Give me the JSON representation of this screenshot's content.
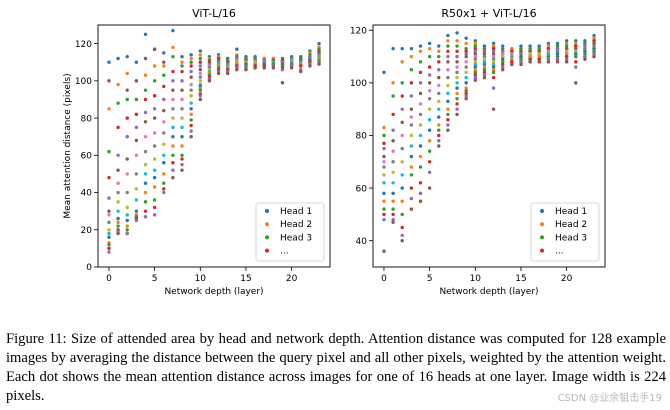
{
  "caption": "Figure 11: Size of attended area by head and network depth. Attention distance was computed for 128 example images by averaging the distance between the query pixel and all other pixels, weighted by the attention weight. Each dot shows the mean attention distance across images for one of 16 heads at one layer. Image width is 224 pixels.",
  "watermark": "CSDN @业余狙击手19",
  "colors": [
    "#1f77b4",
    "#ff7f0e",
    "#2ca02c",
    "#d62728",
    "#9467bd",
    "#8c564b",
    "#e377c2",
    "#7f7f7f",
    "#bcbd22",
    "#17becf"
  ],
  "chart_data": [
    {
      "type": "scatter",
      "title": "ViT-L/16",
      "xlabel": "Network depth (layer)",
      "ylabel": "Mean attention distance (pixels)",
      "xlim": [
        -1.2,
        24.2
      ],
      "ylim": [
        0,
        130
      ],
      "xticks": [
        0,
        5,
        10,
        15,
        20
      ],
      "yticks": [
        0,
        20,
        40,
        60,
        80,
        100,
        120
      ],
      "legend": {
        "position": "lower-right",
        "entries": [
          "Head 1",
          "Head 2",
          "Head 3",
          "..."
        ]
      },
      "layers": [
        [
          110,
          85,
          62,
          48,
          37,
          30,
          28,
          24,
          20,
          18,
          16,
          13,
          12,
          10,
          8,
          100
        ],
        [
          112,
          98,
          88,
          75,
          60,
          52,
          45,
          40,
          35,
          30,
          26,
          24,
          22,
          20,
          19,
          18
        ],
        [
          113,
          104,
          90,
          80,
          70,
          58,
          50,
          40,
          32,
          28,
          25,
          22,
          20,
          18,
          18,
          95
        ],
        [
          110,
          100,
          90,
          82,
          75,
          68,
          60,
          50,
          42,
          36,
          30,
          28,
          27,
          26,
          25,
          100
        ],
        [
          125,
          103,
          95,
          90,
          83,
          78,
          70,
          62,
          55,
          50,
          45,
          40,
          35,
          30,
          27,
          112
        ],
        [
          117,
          108,
          100,
          92,
          85,
          80,
          72,
          65,
          58,
          52,
          48,
          43,
          36,
          32,
          28,
          117
        ],
        [
          115,
          108,
          103,
          97,
          90,
          84,
          78,
          72,
          66,
          60,
          56,
          50,
          45,
          42,
          40,
          110
        ],
        [
          127,
          118,
          113,
          105,
          100,
          95,
          90,
          85,
          80,
          75,
          70,
          65,
          60,
          56,
          52,
          48
        ],
        [
          113,
          110,
          108,
          105,
          100,
          95,
          90,
          85,
          80,
          75,
          70,
          65,
          60,
          58,
          55,
          52
        ],
        [
          114,
          112,
          110,
          108,
          105,
          102,
          98,
          95,
          92,
          88,
          85,
          82,
          79,
          76,
          73,
          70
        ],
        [
          116,
          114,
          112,
          110,
          108,
          106,
          104,
          102,
          100,
          98,
          97,
          96,
          95,
          93,
          92,
          90
        ],
        [
          113,
          112,
          111,
          110,
          109,
          108,
          108,
          107,
          106,
          105,
          104,
          104,
          103,
          102,
          101,
          100
        ],
        [
          114,
          113,
          112,
          112,
          111,
          111,
          110,
          110,
          109,
          109,
          108,
          108,
          107,
          106,
          105,
          104
        ],
        [
          112,
          111,
          111,
          110,
          110,
          110,
          109,
          109,
          108,
          108,
          107,
          107,
          106,
          106,
          105,
          104
        ],
        [
          117,
          114,
          113,
          112,
          112,
          111,
          111,
          110,
          110,
          109,
          109,
          109,
          108,
          108,
          107,
          106
        ],
        [
          113,
          112,
          112,
          111,
          111,
          111,
          110,
          110,
          110,
          109,
          109,
          108,
          108,
          107,
          107,
          106
        ],
        [
          113,
          112,
          112,
          111,
          111,
          110,
          110,
          110,
          110,
          109,
          109,
          109,
          108,
          108,
          107,
          107
        ],
        [
          112,
          112,
          111,
          111,
          111,
          110,
          110,
          110,
          109,
          109,
          109,
          108,
          108,
          108,
          107,
          107
        ],
        [
          112,
          112,
          111,
          111,
          111,
          111,
          110,
          110,
          110,
          110,
          109,
          109,
          109,
          108,
          108,
          107
        ],
        [
          112,
          111,
          111,
          111,
          110,
          110,
          110,
          110,
          109,
          109,
          109,
          108,
          108,
          107,
          106,
          99
        ],
        [
          113,
          112,
          112,
          111,
          111,
          111,
          111,
          110,
          110,
          110,
          109,
          109,
          109,
          108,
          108,
          107
        ],
        [
          113,
          112,
          112,
          111,
          111,
          111,
          110,
          110,
          110,
          110,
          109,
          109,
          108,
          108,
          106,
          105
        ],
        [
          116,
          115,
          114,
          113,
          113,
          112,
          112,
          112,
          111,
          111,
          111,
          110,
          110,
          110,
          109,
          108
        ],
        [
          120,
          118,
          117,
          116,
          115,
          115,
          114,
          114,
          113,
          113,
          112,
          112,
          111,
          110,
          110,
          109
        ]
      ]
    },
    {
      "type": "scatter",
      "title": "R50x1 + ViT-L/16",
      "xlabel": "Network depth (layer)",
      "ylabel": "",
      "xlim": [
        -1.2,
        24.2
      ],
      "ylim": [
        30,
        122
      ],
      "xticks": [
        0,
        5,
        10,
        15,
        20
      ],
      "yticks": [
        40,
        60,
        80,
        100,
        120
      ],
      "legend": {
        "position": "lower-right",
        "entries": [
          "Head 1",
          "Head 2",
          "Head 3",
          "..."
        ]
      },
      "layers": [
        [
          104,
          83,
          80,
          77,
          75,
          72,
          70,
          68,
          65,
          62,
          58,
          55,
          52,
          50,
          48,
          36
        ],
        [
          113,
          100,
          95,
          88,
          82,
          78,
          74,
          70,
          66,
          62,
          58,
          55,
          52,
          50,
          48,
          47
        ],
        [
          113,
          108,
          100,
          95,
          90,
          85,
          80,
          75,
          70,
          65,
          60,
          55,
          50,
          45,
          42,
          40
        ],
        [
          113,
          110,
          105,
          100,
          95,
          90,
          87,
          84,
          80,
          76,
          72,
          68,
          65,
          60,
          56,
          52
        ],
        [
          114,
          112,
          108,
          104,
          100,
          96,
          92,
          88,
          84,
          80,
          76,
          72,
          68,
          62,
          58,
          55
        ],
        [
          115,
          113,
          110,
          106,
          103,
          100,
          97,
          94,
          90,
          86,
          82,
          78,
          74,
          70,
          66,
          60
        ],
        [
          114,
          112,
          110,
          108,
          105,
          102,
          99,
          96,
          93,
          90,
          87,
          84,
          82,
          80,
          78,
          76
        ],
        [
          118,
          116,
          114,
          112,
          110,
          108,
          105,
          102,
          99,
          96,
          93,
          90,
          88,
          86,
          84,
          82
        ],
        [
          119,
          116,
          114,
          112,
          110,
          108,
          106,
          104,
          102,
          100,
          98,
          96,
          94,
          92,
          90,
          88
        ],
        [
          117,
          115,
          113,
          112,
          111,
          110,
          108,
          106,
          104,
          102,
          100,
          98,
          97,
          96,
          95,
          94
        ],
        [
          116,
          115,
          114,
          113,
          112,
          111,
          110,
          109,
          108,
          107,
          106,
          105,
          104,
          103,
          102,
          101
        ],
        [
          114,
          113,
          113,
          112,
          112,
          111,
          110,
          110,
          109,
          108,
          107,
          106,
          105,
          104,
          103,
          102
        ],
        [
          115,
          114,
          113,
          113,
          112,
          111,
          110,
          109,
          108,
          107,
          106,
          105,
          104,
          102,
          98,
          90
        ],
        [
          114,
          113,
          113,
          112,
          112,
          111,
          111,
          110,
          110,
          109,
          109,
          108,
          108,
          107,
          106,
          105
        ],
        [
          113,
          113,
          112,
          112,
          111,
          111,
          111,
          110,
          110,
          110,
          109,
          109,
          108,
          108,
          107,
          107
        ],
        [
          114,
          113,
          113,
          112,
          112,
          112,
          111,
          111,
          110,
          110,
          110,
          109,
          109,
          108,
          108,
          107
        ],
        [
          114,
          113,
          113,
          112,
          112,
          112,
          111,
          111,
          111,
          110,
          110,
          110,
          109,
          109,
          108,
          108
        ],
        [
          114,
          113,
          113,
          112,
          112,
          112,
          111,
          111,
          111,
          110,
          110,
          110,
          109,
          109,
          108,
          108
        ],
        [
          115,
          114,
          113,
          113,
          112,
          112,
          112,
          111,
          111,
          111,
          110,
          110,
          110,
          109,
          109,
          108
        ],
        [
          115,
          114,
          114,
          113,
          113,
          112,
          112,
          112,
          111,
          111,
          111,
          110,
          110,
          109,
          109,
          108
        ],
        [
          116,
          115,
          114,
          113,
          113,
          113,
          112,
          112,
          112,
          111,
          111,
          111,
          110,
          110,
          109,
          108
        ],
        [
          116,
          115,
          114,
          114,
          113,
          113,
          112,
          112,
          112,
          111,
          111,
          110,
          110,
          108,
          106,
          100
        ],
        [
          116,
          115,
          115,
          114,
          114,
          113,
          113,
          113,
          112,
          112,
          112,
          111,
          111,
          110,
          110,
          109
        ],
        [
          118,
          117,
          116,
          116,
          115,
          115,
          114,
          114,
          113,
          113,
          113,
          112,
          112,
          111,
          111,
          110
        ]
      ]
    }
  ]
}
